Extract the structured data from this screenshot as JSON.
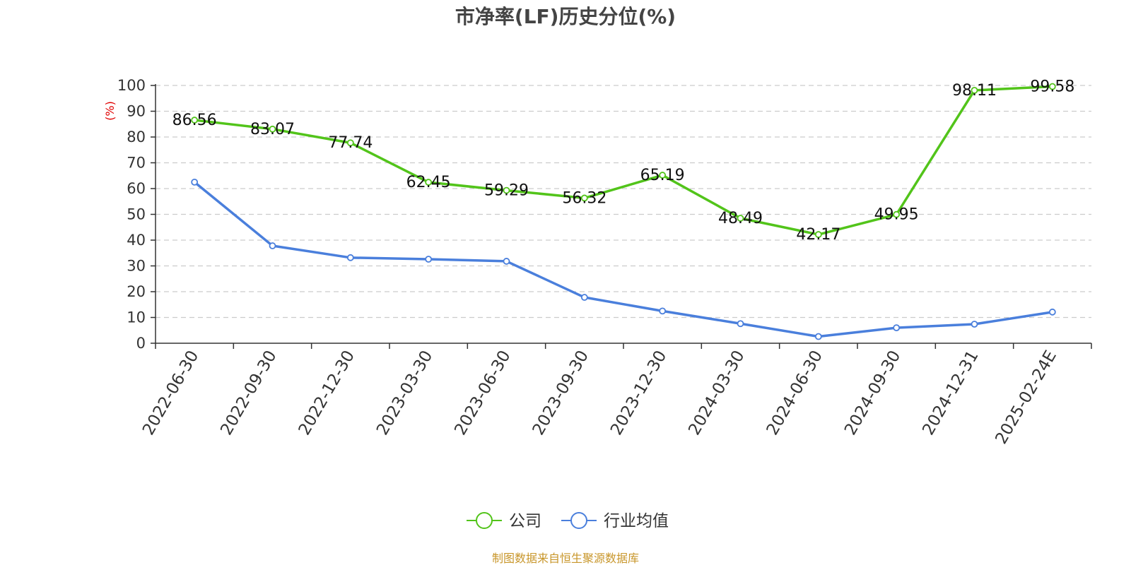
{
  "chart_data": {
    "type": "line",
    "title": "市净率(LF)历史分位(%)",
    "ylabel": "(%)",
    "xlabel": "",
    "ylim": [
      0,
      100
    ],
    "yticks": [
      0,
      10,
      20,
      30,
      40,
      50,
      60,
      70,
      80,
      90,
      100
    ],
    "grid": true,
    "legend_position": "bottom-center",
    "categories": [
      "2022-06-30",
      "2022-09-30",
      "2022-12-30",
      "2023-03-30",
      "2023-06-30",
      "2023-09-30",
      "2023-12-30",
      "2024-03-30",
      "2024-06-30",
      "2024-09-30",
      "2024-12-31",
      "2025-02-24E"
    ],
    "series": [
      {
        "name": "公司",
        "color": "#52c41a",
        "values": [
          86.56,
          83.07,
          77.74,
          62.45,
          59.29,
          56.32,
          65.19,
          48.49,
          42.17,
          49.95,
          98.11,
          99.58
        ],
        "data_labels": [
          "86.56",
          "83.07",
          "77.74",
          "62.45",
          "59.29",
          "56.32",
          "65.19",
          "48.49",
          "42.17",
          "49.95",
          "98.11",
          "99.58"
        ]
      },
      {
        "name": "行业均值",
        "color": "#4a7fdc",
        "values": [
          62.5,
          37.8,
          33.2,
          32.6,
          31.8,
          17.8,
          12.5,
          7.6,
          2.6,
          6.0,
          7.4,
          12.1
        ]
      }
    ],
    "source": "制图数据来自恒生聚源数据库"
  }
}
